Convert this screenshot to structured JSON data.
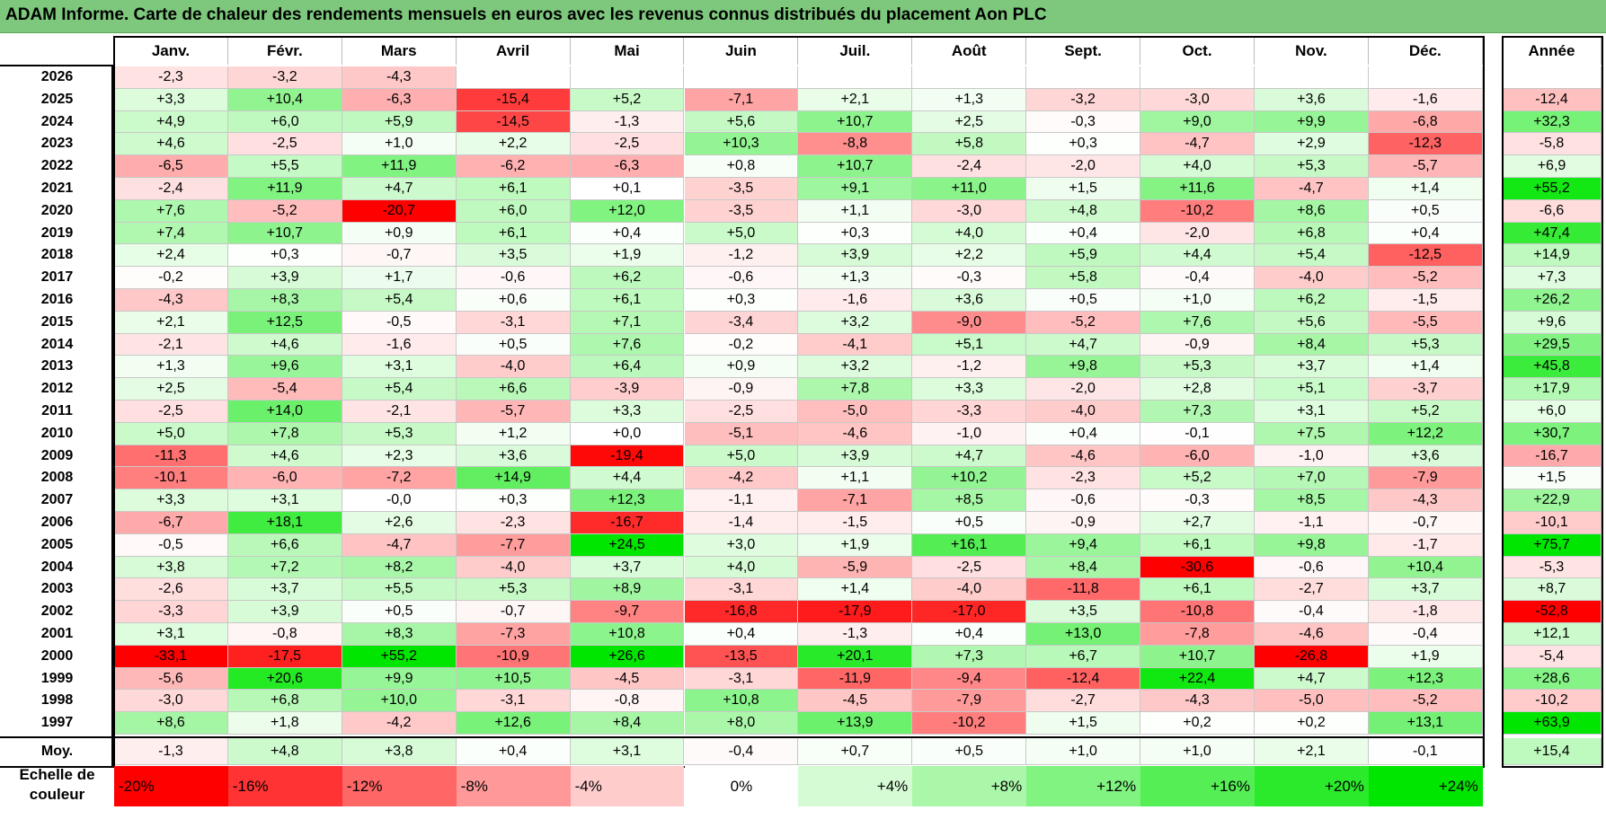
{
  "title": "ADAM Informe. Carte de chaleur des rendements mensuels en euros avec les revenus connus distribués du placement Aon PLC",
  "colors": {
    "title_bg": "#7dc87d",
    "neg_max": "#ff0000",
    "pos_max": "#00e600",
    "neutral": "#ffffff"
  },
  "chart_data": {
    "type": "heatmap",
    "title": "ADAM Informe. Carte de chaleur des rendements mensuels en euros avec les revenus connus distribués du placement Aon PLC",
    "months": [
      "Janv.",
      "Févr.",
      "Mars",
      "Avril",
      "Mai",
      "Juin",
      "Juil.",
      "Août",
      "Sept.",
      "Oct.",
      "Nov.",
      "Déc."
    ],
    "year_header": "Année",
    "rows": [
      {
        "year": "2026",
        "months": [
          "-2,3",
          "-3,2",
          "-4,3",
          "",
          "",
          "",
          "",
          "",
          "",
          "",
          "",
          ""
        ],
        "annual": ""
      },
      {
        "year": "2025",
        "months": [
          "+3,3",
          "+10,4",
          "-6,3",
          "-15,4",
          "+5,2",
          "-7,1",
          "+2,1",
          "+1,3",
          "-3,2",
          "-3,0",
          "+3,6",
          "-1,6"
        ],
        "annual": "-12,4"
      },
      {
        "year": "2024",
        "months": [
          "+4,9",
          "+6,0",
          "+5,9",
          "-14,5",
          "-1,3",
          "+5,6",
          "+10,7",
          "+2,5",
          "-0,3",
          "+9,0",
          "+9,9",
          "-6,8"
        ],
        "annual": "+32,3"
      },
      {
        "year": "2023",
        "months": [
          "+4,6",
          "-2,5",
          "+1,0",
          "+2,2",
          "-2,5",
          "+10,3",
          "-8,8",
          "+5,8",
          "+0,3",
          "-4,7",
          "+2,9",
          "-12,3"
        ],
        "annual": "-5,8"
      },
      {
        "year": "2022",
        "months": [
          "-6,5",
          "+5,5",
          "+11,9",
          "-6,2",
          "-6,3",
          "+0,8",
          "+10,7",
          "-2,4",
          "-2,0",
          "+4,0",
          "+5,3",
          "-5,7"
        ],
        "annual": "+6,9"
      },
      {
        "year": "2021",
        "months": [
          "-2,4",
          "+11,9",
          "+4,7",
          "+6,1",
          "+0,1",
          "-3,5",
          "+9,1",
          "+11,0",
          "+1,5",
          "+11,6",
          "-4,7",
          "+1,4"
        ],
        "annual": "+55,2"
      },
      {
        "year": "2020",
        "months": [
          "+7,6",
          "-5,2",
          "-20,7",
          "+6,0",
          "+12,0",
          "-3,5",
          "+1,1",
          "-3,0",
          "+4,8",
          "-10,2",
          "+8,6",
          "+0,5"
        ],
        "annual": "-6,6"
      },
      {
        "year": "2019",
        "months": [
          "+7,4",
          "+10,7",
          "+0,9",
          "+6,1",
          "+0,4",
          "+5,0",
          "+0,3",
          "+4,0",
          "+0,4",
          "-2,0",
          "+6,8",
          "+0,4"
        ],
        "annual": "+47,4"
      },
      {
        "year": "2018",
        "months": [
          "+2,4",
          "+0,3",
          "-0,7",
          "+3,5",
          "+1,9",
          "-1,2",
          "+3,9",
          "+2,2",
          "+5,9",
          "+4,4",
          "+5,4",
          "-12,5"
        ],
        "annual": "+14,9"
      },
      {
        "year": "2017",
        "months": [
          "-0,2",
          "+3,9",
          "+1,7",
          "-0,6",
          "+6,2",
          "-0,6",
          "+1,3",
          "-0,3",
          "+5,8",
          "-0,4",
          "-4,0",
          "-5,2"
        ],
        "annual": "+7,3"
      },
      {
        "year": "2016",
        "months": [
          "-4,3",
          "+8,3",
          "+5,4",
          "+0,6",
          "+6,1",
          "+0,3",
          "-1,6",
          "+3,6",
          "+0,5",
          "+1,0",
          "+6,2",
          "-1,5"
        ],
        "annual": "+26,2"
      },
      {
        "year": "2015",
        "months": [
          "+2,1",
          "+12,5",
          "-0,5",
          "-3,1",
          "+7,1",
          "-3,4",
          "+3,2",
          "-9,0",
          "-5,2",
          "+7,6",
          "+5,6",
          "-5,5"
        ],
        "annual": "+9,6"
      },
      {
        "year": "2014",
        "months": [
          "-2,1",
          "+4,6",
          "-1,6",
          "+0,5",
          "+7,6",
          "-0,2",
          "-4,1",
          "+5,1",
          "+4,7",
          "-0,9",
          "+8,4",
          "+5,3"
        ],
        "annual": "+29,5"
      },
      {
        "year": "2013",
        "months": [
          "+1,3",
          "+9,6",
          "+3,1",
          "-4,0",
          "+6,4",
          "+0,9",
          "+3,2",
          "-1,2",
          "+9,8",
          "+5,3",
          "+3,7",
          "+1,4"
        ],
        "annual": "+45,8"
      },
      {
        "year": "2012",
        "months": [
          "+2,5",
          "-5,4",
          "+5,4",
          "+6,6",
          "-3,9",
          "-0,9",
          "+7,8",
          "+3,3",
          "-2,0",
          "+2,8",
          "+5,1",
          "-3,7"
        ],
        "annual": "+17,9"
      },
      {
        "year": "2011",
        "months": [
          "-2,5",
          "+14,0",
          "-2,1",
          "-5,7",
          "+3,3",
          "-2,5",
          "-5,0",
          "-3,3",
          "-4,0",
          "+7,3",
          "+3,1",
          "+5,2"
        ],
        "annual": "+6,0"
      },
      {
        "year": "2010",
        "months": [
          "+5,0",
          "+7,8",
          "+5,3",
          "+1,2",
          "+0,0",
          "-5,1",
          "-4,6",
          "-1,0",
          "+0,4",
          "-0,1",
          "+7,5",
          "+12,2"
        ],
        "annual": "+30,7"
      },
      {
        "year": "2009",
        "months": [
          "-11,3",
          "+4,6",
          "+2,3",
          "+3,6",
          "-19,4",
          "+5,0",
          "+3,9",
          "+4,7",
          "-4,6",
          "-6,0",
          "-1,0",
          "+3,6"
        ],
        "annual": "-16,7"
      },
      {
        "year": "2008",
        "months": [
          "-10,1",
          "-6,0",
          "-7,2",
          "+14,9",
          "+4,4",
          "-4,2",
          "+1,1",
          "+10,2",
          "-2,3",
          "+5,2",
          "+7,0",
          "-7,9"
        ],
        "annual": "+1,5"
      },
      {
        "year": "2007",
        "months": [
          "+3,3",
          "+3,1",
          "-0,0",
          "+0,3",
          "+12,3",
          "-1,1",
          "-7,1",
          "+8,5",
          "-0,6",
          "-0,3",
          "+8,5",
          "-4,3"
        ],
        "annual": "+22,9"
      },
      {
        "year": "2006",
        "months": [
          "-6,7",
          "+18,1",
          "+2,6",
          "-2,3",
          "-16,7",
          "-1,4",
          "-1,5",
          "+0,5",
          "-0,9",
          "+2,7",
          "-1,1",
          "-0,7"
        ],
        "annual": "-10,1"
      },
      {
        "year": "2005",
        "months": [
          "-0,5",
          "+6,6",
          "-4,7",
          "-7,7",
          "+24,5",
          "+3,0",
          "+1,9",
          "+16,1",
          "+9,4",
          "+6,1",
          "+9,8",
          "-1,7"
        ],
        "annual": "+75,7"
      },
      {
        "year": "2004",
        "months": [
          "+3,8",
          "+7,2",
          "+8,2",
          "-4,0",
          "+3,7",
          "+4,0",
          "-5,9",
          "-2,5",
          "+8,4",
          "-30,6",
          "-0,6",
          "+10,4"
        ],
        "annual": "-5,3"
      },
      {
        "year": "2003",
        "months": [
          "-2,6",
          "+3,7",
          "+5,5",
          "+5,3",
          "+8,9",
          "-3,1",
          "+1,4",
          "-4,0",
          "-11,8",
          "+6,1",
          "-2,7",
          "+3,7"
        ],
        "annual": "+8,7"
      },
      {
        "year": "2002",
        "months": [
          "-3,3",
          "+3,9",
          "+0,5",
          "-0,7",
          "-9,7",
          "-16,8",
          "-17,9",
          "-17,0",
          "+3,5",
          "-10,8",
          "-0,4",
          "-1,8"
        ],
        "annual": "-52,8"
      },
      {
        "year": "2001",
        "months": [
          "+3,1",
          "-0,8",
          "+8,3",
          "-7,3",
          "+10,8",
          "+0,4",
          "-1,3",
          "+0,4",
          "+13,0",
          "-7,8",
          "-4,6",
          "-0,4"
        ],
        "annual": "+12,1"
      },
      {
        "year": "2000",
        "months": [
          "-33,1",
          "-17,5",
          "+55,2",
          "-10,9",
          "+26,6",
          "-13,5",
          "+20,1",
          "+7,3",
          "+6,7",
          "+10,7",
          "-26,8",
          "+1,9"
        ],
        "annual": "-5,4"
      },
      {
        "year": "1999",
        "months": [
          "-5,6",
          "+20,6",
          "+9,9",
          "+10,5",
          "-4,5",
          "-3,1",
          "-11,9",
          "-9,4",
          "-12,4",
          "+22,4",
          "+4,7",
          "+12,3"
        ],
        "annual": "+28,6"
      },
      {
        "year": "1998",
        "months": [
          "-3,0",
          "+6,8",
          "+10,0",
          "-3,1",
          "-0,8",
          "+10,8",
          "-4,5",
          "-7,9",
          "-2,7",
          "-4,3",
          "-5,0",
          "-5,2"
        ],
        "annual": "-10,2"
      },
      {
        "year": "1997",
        "months": [
          "+8,6",
          "+1,8",
          "-4,2",
          "+12,6",
          "+8,4",
          "+8,0",
          "+13,9",
          "-10,2",
          "+1,5",
          "+0,2",
          "+0,2",
          "+13,1"
        ],
        "annual": "+63,9"
      }
    ],
    "average": {
      "label": "Moy.",
      "months": [
        "-1,3",
        "+4,8",
        "+3,8",
        "+0,4",
        "+3,1",
        "-0,4",
        "+0,7",
        "+0,5",
        "+1,0",
        "+1,0",
        "+2,1",
        "-0,1"
      ],
      "annual": "+15,4"
    },
    "legend": {
      "label_line1": "Echelle de",
      "label_line2": "couleur",
      "stops": [
        {
          "label": "-20%",
          "value": -20
        },
        {
          "label": "-16%",
          "value": -16
        },
        {
          "label": "-12%",
          "value": -12
        },
        {
          "label": "-8%",
          "value": -8
        },
        {
          "label": "-4%",
          "value": -4
        },
        {
          "label": "0%",
          "value": 0
        },
        {
          "label": "+4%",
          "value": 4
        },
        {
          "label": "+8%",
          "value": 8
        },
        {
          "label": "+12%",
          "value": 12
        },
        {
          "label": "+16%",
          "value": 16
        },
        {
          "label": "+20%",
          "value": 20
        },
        {
          "label": "+24%",
          "value": 24
        }
      ]
    }
  }
}
